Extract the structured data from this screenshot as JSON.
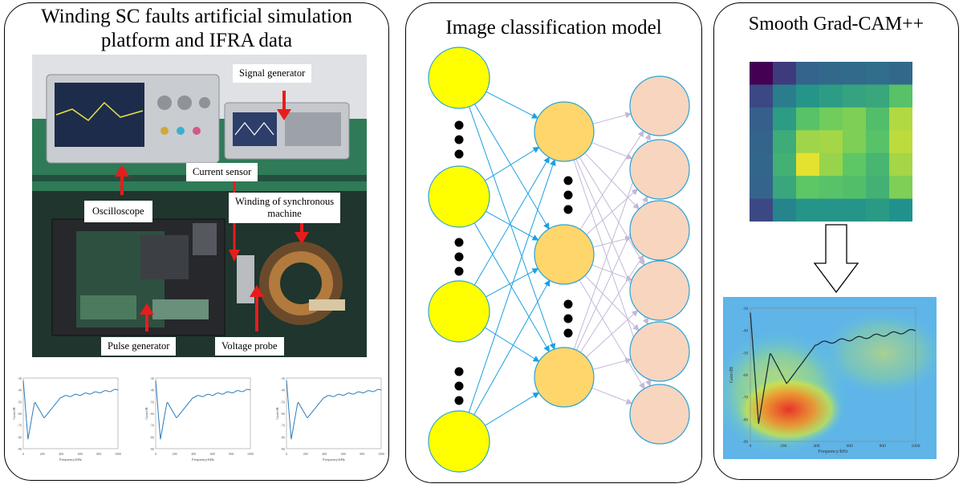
{
  "panels": {
    "left_title_line1": "Winding SC faults artificial simulation",
    "left_title_line2": "platform and IFRA data",
    "middle_title": "Image classification model",
    "right_title": "Smooth Grad-CAM++"
  },
  "callouts": {
    "signal_generator": "Signal generator",
    "current_sensor": "Current sensor",
    "oscilloscope": "Oscilloscope",
    "winding_line1": "Winding of synchronous",
    "winding_line2": "machine",
    "pulse_generator": "Pulse generator",
    "voltage_probe": "Voltage probe"
  },
  "plots": {
    "x_ticks": [
      "0",
      "200",
      "400",
      "600",
      "800",
      "1000"
    ],
    "y_ticks": [
      "-30",
      "-40",
      "-50",
      "-60",
      "-70",
      "-80",
      "-90"
    ],
    "xlabel": "Frequency/kHz",
    "ylabel": "Gain/dB"
  },
  "colors": {
    "input_node": "#ffff00",
    "hidden_node": "#ffd66b",
    "output_node": "#f8d5bf",
    "node_stroke": "#29a3d6",
    "edge_blue": "#1ba1e2",
    "edge_lilac": "#c4b8d8",
    "arrow_red": "#e81c1c"
  },
  "heatmap": {
    "rows": 7,
    "cols": 7,
    "values": [
      [
        0.0,
        0.18,
        0.32,
        0.34,
        0.35,
        0.36,
        0.34
      ],
      [
        0.22,
        0.42,
        0.52,
        0.55,
        0.58,
        0.6,
        0.72
      ],
      [
        0.3,
        0.55,
        0.72,
        0.78,
        0.8,
        0.7,
        0.88
      ],
      [
        0.32,
        0.62,
        0.85,
        0.86,
        0.8,
        0.72,
        0.9
      ],
      [
        0.33,
        0.64,
        0.96,
        0.84,
        0.74,
        0.66,
        0.86
      ],
      [
        0.32,
        0.6,
        0.74,
        0.72,
        0.7,
        0.64,
        0.8
      ],
      [
        0.22,
        0.45,
        0.52,
        0.52,
        0.52,
        0.54,
        0.5
      ]
    ]
  }
}
